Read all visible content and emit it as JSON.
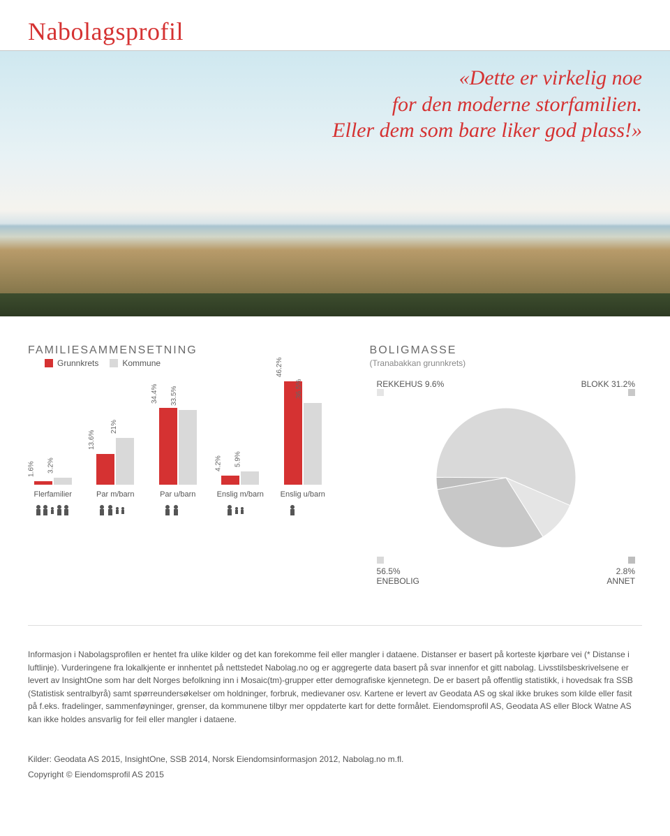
{
  "page": {
    "title": "Nabolagsprofil",
    "quote_line1": "«Dette er virkelig noe",
    "quote_line2": "for den moderne storfamilien.",
    "quote_line3": "Eller dem som bare liker god plass!»"
  },
  "bar_chart": {
    "title": "FAMILIESAMMENSETNING",
    "legend": [
      {
        "label": "Grunnkrets",
        "color": "#d53232"
      },
      {
        "label": "Kommune",
        "color": "#d9d9d9"
      }
    ],
    "ymax": 50,
    "colors": {
      "grunnkrets": "#d53232",
      "kommune": "#d9d9d9"
    },
    "label_color": "#666",
    "label_fontsize": 10,
    "cat_fontsize": 11,
    "categories": [
      {
        "name": "Flerfamilier",
        "grunnkrets": 1.6,
        "kommune": 3.2
      },
      {
        "name": "Par m/barn",
        "grunnkrets": 13.6,
        "kommune": 21
      },
      {
        "name": "Par u/barn",
        "grunnkrets": 34.4,
        "kommune": 33.5
      },
      {
        "name": "Enslig m/barn",
        "grunnkrets": 4.2,
        "kommune": 5.9
      },
      {
        "name": "Enslig u/barn",
        "grunnkrets": 46.2,
        "kommune": 36.5
      }
    ],
    "icons": [
      "flerfamilier",
      "par-m-barn",
      "par-u-barn",
      "enslig-m-barn",
      "enslig-u-barn"
    ]
  },
  "pie_chart": {
    "title": "BOLIGMASSE",
    "subtitle": "(Tranabakkan grunnkrets)",
    "background": "#ffffff",
    "radius": 100,
    "slices": [
      {
        "name": "ENEBOLIG",
        "value": 56.5,
        "color": "#d9d9d9"
      },
      {
        "name": "REKKEHUS",
        "value": 9.6,
        "color": "#e5e5e5"
      },
      {
        "name": "BLOKK",
        "value": 31.2,
        "color": "#c8c8c8"
      },
      {
        "name": "ANNET",
        "value": 2.8,
        "color": "#bdbdbd"
      }
    ],
    "labels": {
      "top_left": {
        "name": "REKKEHUS",
        "value": "9.6%"
      },
      "top_right": {
        "name": "BLOKK",
        "value": "31.2%"
      },
      "bot_left": {
        "name": "ENEBOLIG",
        "value": "56.5%"
      },
      "bot_right": {
        "name": "ANNET",
        "value": "2.8%"
      }
    }
  },
  "body_text": "Informasjon i Nabolagsprofilen er hentet fra ulike kilder og det kan forekomme feil eller mangler i dataene. Distanser er basert på korteste kjørbare vei (* Distanse i luftlinje). Vurderingene fra lokalkjente er innhentet på nettstedet Nabolag.no og er aggregerte data basert på svar innenfor et gitt nabolag. Livsstilsbeskrivelsene er levert av InsightOne som har delt Norges befolkning inn i Mosaic(tm)-grupper etter demografiske kjennetegn. De er basert på offentlig statistikk, i hovedsak fra SSB (Statistisk sentralbyrå) samt spørreundersøkelser om holdninger, forbruk, medievaner osv. Kartene er levert av Geodata AS og skal ikke brukes som kilde eller fasit på f.eks. fradelinger, sammenføyninger, grenser, da kommunene tilbyr mer oppdaterte kart for dette formålet. Eiendomsprofil AS, Geodata AS eller Block Watne AS kan ikke holdes ansvarlig for feil eller mangler i dataene.",
  "sources": "Kilder: Geodata AS 2015, InsightOne, SSB 2014, Norsk Eiendomsinformasjon 2012, Nabolag.no m.fl.",
  "copyright": "Copyright © Eiendomsprofil AS 2015"
}
